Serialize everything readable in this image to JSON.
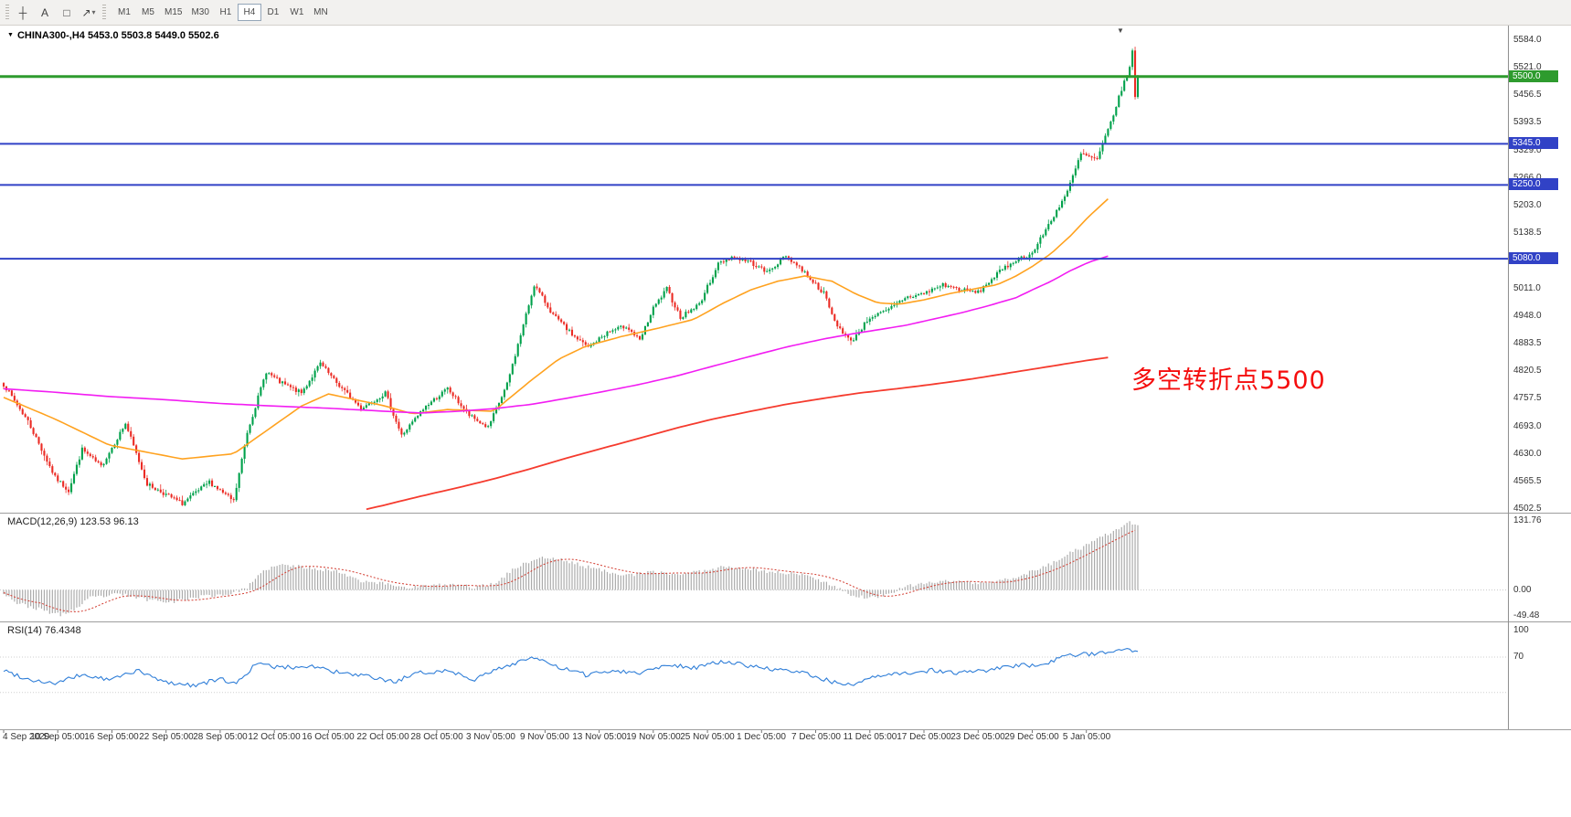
{
  "toolbar": {
    "tools": [
      {
        "name": "crosshair-tool",
        "glyph": "┼"
      },
      {
        "name": "text-tool",
        "glyph": "A"
      },
      {
        "name": "shapes-tool",
        "glyph": "□"
      },
      {
        "name": "arrows-tool",
        "glyph": "↗",
        "caret": true
      }
    ],
    "timeframes": [
      {
        "label": "M1",
        "active": false
      },
      {
        "label": "M5",
        "active": false
      },
      {
        "label": "M15",
        "active": false
      },
      {
        "label": "M30",
        "active": false
      },
      {
        "label": "H1",
        "active": false
      },
      {
        "label": "H4",
        "active": true
      },
      {
        "label": "D1",
        "active": false
      },
      {
        "label": "W1",
        "active": false
      },
      {
        "label": "MN",
        "active": false
      }
    ]
  },
  "chart": {
    "title": "CHINA300-,H4 5453.0 5503.8 5449.0 5502.6",
    "collapse_icon": "▼",
    "shift_icon": "▼"
  },
  "annotation": {
    "text": "多空转折点5500",
    "color": "#F50D0D"
  },
  "chart_data": {
    "type": "candlestick",
    "symbol": "CHINA300-",
    "timeframe": "H4",
    "ohlc_current": {
      "open": 5453.0,
      "high": 5503.8,
      "low": 5449.0,
      "close": 5502.6
    },
    "num_candles": 420,
    "colors": {
      "up": "#00A14B",
      "down": "#EB2B24",
      "background": "#FFFFFF"
    },
    "price_axis": {
      "min": 4502.5,
      "max": 5584.0,
      "ticks": [
        "5584.0",
        "5521.0",
        "5456.5",
        "5393.5",
        "5329.0",
        "5266.0",
        "5203.0",
        "5138.5",
        "5011.0",
        "4948.0",
        "4883.5",
        "4820.5",
        "4757.5",
        "4693.0",
        "4630.0",
        "4565.5",
        "4502.5"
      ]
    },
    "levels": [
      {
        "price": 5500.0,
        "label": "5500.0",
        "color": "#2E9B2E",
        "line_width": 3
      },
      {
        "price": 5345.0,
        "label": "5345.0",
        "color": "#3142C6",
        "line_width": 2
      },
      {
        "price": 5250.0,
        "label": "5250.0",
        "color": "#3142C6",
        "line_width": 2
      },
      {
        "price": 5080.0,
        "label": "5080.0",
        "color": "#3142C6",
        "line_width": 2
      }
    ],
    "close_path": [
      [
        0,
        4790
      ],
      [
        9,
        4705
      ],
      [
        19,
        4575
      ],
      [
        24,
        4545
      ],
      [
        29,
        4640
      ],
      [
        36,
        4600
      ],
      [
        45,
        4700
      ],
      [
        53,
        4560
      ],
      [
        66,
        4515
      ],
      [
        76,
        4565
      ],
      [
        85,
        4520
      ],
      [
        90,
        4680
      ],
      [
        97,
        4820
      ],
      [
        102,
        4795
      ],
      [
        110,
        4770
      ],
      [
        117,
        4838
      ],
      [
        122,
        4800
      ],
      [
        132,
        4735
      ],
      [
        141,
        4770
      ],
      [
        147,
        4672
      ],
      [
        156,
        4740
      ],
      [
        164,
        4780
      ],
      [
        172,
        4718
      ],
      [
        179,
        4690
      ],
      [
        186,
        4790
      ],
      [
        193,
        4950
      ],
      [
        196,
        5020
      ],
      [
        203,
        4950
      ],
      [
        210,
        4905
      ],
      [
        216,
        4875
      ],
      [
        223,
        4910
      ],
      [
        230,
        4925
      ],
      [
        235,
        4890
      ],
      [
        240,
        4965
      ],
      [
        245,
        5010
      ],
      [
        250,
        4945
      ],
      [
        257,
        4975
      ],
      [
        264,
        5068
      ],
      [
        269,
        5085
      ],
      [
        276,
        5072
      ],
      [
        282,
        5048
      ],
      [
        289,
        5088
      ],
      [
        296,
        5048
      ],
      [
        303,
        5000
      ],
      [
        307,
        4935
      ],
      [
        313,
        4888
      ],
      [
        320,
        4945
      ],
      [
        326,
        4958
      ],
      [
        333,
        4990
      ],
      [
        340,
        5000
      ],
      [
        347,
        5020
      ],
      [
        354,
        5008
      ],
      [
        360,
        5002
      ],
      [
        367,
        5045
      ],
      [
        374,
        5078
      ],
      [
        380,
        5092
      ],
      [
        386,
        5158
      ],
      [
        393,
        5235
      ],
      [
        398,
        5322
      ],
      [
        404,
        5308
      ],
      [
        409,
        5395
      ],
      [
        413,
        5470
      ],
      [
        416,
        5520
      ],
      [
        417,
        5560
      ],
      [
        418,
        5450
      ],
      [
        419,
        5502.6
      ]
    ],
    "moving_averages": [
      {
        "name": "ma-fast",
        "color": "#FFA21F",
        "width": 1.6,
        "points": [
          [
            0,
            4760
          ],
          [
            19,
            4710
          ],
          [
            39,
            4650
          ],
          [
            66,
            4618
          ],
          [
            85,
            4630
          ],
          [
            110,
            4740
          ],
          [
            120,
            4768
          ],
          [
            141,
            4740
          ],
          [
            151,
            4722
          ],
          [
            164,
            4732
          ],
          [
            181,
            4728
          ],
          [
            195,
            4800
          ],
          [
            205,
            4848
          ],
          [
            215,
            4878
          ],
          [
            228,
            4900
          ],
          [
            242,
            4920
          ],
          [
            255,
            4940
          ],
          [
            266,
            4978
          ],
          [
            276,
            5008
          ],
          [
            286,
            5028
          ],
          [
            296,
            5040
          ],
          [
            306,
            5028
          ],
          [
            315,
            4998
          ],
          [
            323,
            4978
          ],
          [
            331,
            4975
          ],
          [
            340,
            4985
          ],
          [
            350,
            5000
          ],
          [
            360,
            5012
          ],
          [
            367,
            5020
          ],
          [
            374,
            5040
          ],
          [
            380,
            5062
          ],
          [
            387,
            5092
          ],
          [
            394,
            5132
          ],
          [
            401,
            5178
          ],
          [
            408,
            5218
          ]
        ]
      },
      {
        "name": "ma-mid",
        "color": "#F21DF2",
        "width": 1.6,
        "points": [
          [
            0,
            4780
          ],
          [
            19,
            4772
          ],
          [
            39,
            4762
          ],
          [
            59,
            4755
          ],
          [
            80,
            4746
          ],
          [
            100,
            4740
          ],
          [
            120,
            4735
          ],
          [
            141,
            4728
          ],
          [
            154,
            4724
          ],
          [
            168,
            4728
          ],
          [
            181,
            4734
          ],
          [
            195,
            4744
          ],
          [
            208,
            4758
          ],
          [
            222,
            4774
          ],
          [
            235,
            4790
          ],
          [
            249,
            4810
          ],
          [
            262,
            4832
          ],
          [
            276,
            4855
          ],
          [
            289,
            4876
          ],
          [
            303,
            4895
          ],
          [
            313,
            4906
          ],
          [
            323,
            4916
          ],
          [
            333,
            4926
          ],
          [
            343,
            4940
          ],
          [
            353,
            4954
          ],
          [
            363,
            4970
          ],
          [
            374,
            4990
          ],
          [
            380,
            5008
          ],
          [
            387,
            5028
          ],
          [
            394,
            5052
          ],
          [
            401,
            5072
          ],
          [
            408,
            5086
          ]
        ]
      },
      {
        "name": "ma-slow",
        "color": "#F53B2E",
        "width": 1.8,
        "points": [
          [
            134,
            4502
          ],
          [
            141,
            4512
          ],
          [
            154,
            4532
          ],
          [
            168,
            4552
          ],
          [
            181,
            4572
          ],
          [
            195,
            4596
          ],
          [
            208,
            4620
          ],
          [
            222,
            4644
          ],
          [
            235,
            4666
          ],
          [
            249,
            4690
          ],
          [
            262,
            4710
          ],
          [
            276,
            4728
          ],
          [
            289,
            4744
          ],
          [
            303,
            4758
          ],
          [
            316,
            4770
          ],
          [
            330,
            4780
          ],
          [
            343,
            4790
          ],
          [
            357,
            4802
          ],
          [
            370,
            4815
          ],
          [
            387,
            4832
          ],
          [
            401,
            4846
          ],
          [
            408,
            4852
          ]
        ]
      }
    ],
    "time_axis": [
      "4 Sep 2020",
      "10 Sep 05:00",
      "16 Sep 05:00",
      "22 Sep 05:00",
      "28 Sep 05:00",
      "12 Oct 05:00",
      "16 Oct 05:00",
      "22 Oct 05:00",
      "28 Oct 05:00",
      "3 Nov 05:00",
      "9 Nov 05:00",
      "13 Nov 05:00",
      "19 Nov 05:00",
      "25 Nov 05:00",
      "1 Dec 05:00",
      "7 Dec 05:00",
      "11 Dec 05:00",
      "17 Dec 05:00",
      "23 Dec 05:00",
      "29 Dec 05:00",
      "5 Jan 05:00"
    ],
    "macd": {
      "label": "MACD(12,26,9) 123.53 96.13",
      "main_value": 123.53,
      "signal_value": 96.13,
      "max": 131.76,
      "min": -49.48,
      "ticks": [
        "131.76",
        "0.00",
        "-49.48"
      ],
      "colors": {
        "histogram": "#ABABAB",
        "signal": "#D23A2E"
      },
      "points": [
        [
          0,
          -5
        ],
        [
          5,
          -25
        ],
        [
          14,
          -38
        ],
        [
          21,
          -48
        ],
        [
          27,
          -35
        ],
        [
          32,
          -15
        ],
        [
          43,
          -8
        ],
        [
          53,
          -18
        ],
        [
          63,
          -22
        ],
        [
          73,
          -12
        ],
        [
          83,
          -8
        ],
        [
          90,
          5
        ],
        [
          97,
          40
        ],
        [
          103,
          48
        ],
        [
          114,
          42
        ],
        [
          124,
          35
        ],
        [
          132,
          18
        ],
        [
          141,
          12
        ],
        [
          149,
          5
        ],
        [
          157,
          8
        ],
        [
          168,
          10
        ],
        [
          174,
          5
        ],
        [
          181,
          12
        ],
        [
          190,
          45
        ],
        [
          198,
          62
        ],
        [
          206,
          58
        ],
        [
          215,
          45
        ],
        [
          223,
          35
        ],
        [
          232,
          28
        ],
        [
          240,
          35
        ],
        [
          249,
          30
        ],
        [
          257,
          35
        ],
        [
          266,
          45
        ],
        [
          274,
          42
        ],
        [
          282,
          35
        ],
        [
          291,
          32
        ],
        [
          299,
          25
        ],
        [
          308,
          5
        ],
        [
          314,
          -12
        ],
        [
          321,
          -15
        ],
        [
          328,
          -5
        ],
        [
          335,
          8
        ],
        [
          343,
          15
        ],
        [
          352,
          18
        ],
        [
          360,
          12
        ],
        [
          369,
          18
        ],
        [
          377,
          30
        ],
        [
          385,
          45
        ],
        [
          394,
          70
        ],
        [
          402,
          90
        ],
        [
          409,
          110
        ],
        [
          416,
          128
        ],
        [
          419,
          123.53
        ]
      ]
    },
    "rsi": {
      "label": "RSI(14) 76.4348",
      "value": 76.4348,
      "color": "#2F7ED8",
      "ticks": [
        "100",
        "70"
      ],
      "levels": [
        70,
        30
      ],
      "points": [
        [
          0,
          55
        ],
        [
          9,
          45
        ],
        [
          19,
          40
        ],
        [
          29,
          50
        ],
        [
          39,
          44
        ],
        [
          49,
          55
        ],
        [
          59,
          42
        ],
        [
          70,
          38
        ],
        [
          80,
          45
        ],
        [
          86,
          40
        ],
        [
          93,
          62
        ],
        [
          103,
          58
        ],
        [
          114,
          60
        ],
        [
          124,
          52
        ],
        [
          134,
          48
        ],
        [
          144,
          42
        ],
        [
          154,
          52
        ],
        [
          164,
          55
        ],
        [
          174,
          45
        ],
        [
          184,
          58
        ],
        [
          195,
          70
        ],
        [
          205,
          58
        ],
        [
          215,
          50
        ],
        [
          225,
          55
        ],
        [
          235,
          52
        ],
        [
          245,
          62
        ],
        [
          255,
          58
        ],
        [
          266,
          65
        ],
        [
          276,
          60
        ],
        [
          286,
          55
        ],
        [
          296,
          52
        ],
        [
          306,
          42
        ],
        [
          313,
          38
        ],
        [
          323,
          48
        ],
        [
          333,
          52
        ],
        [
          343,
          55
        ],
        [
          353,
          52
        ],
        [
          363,
          55
        ],
        [
          374,
          60
        ],
        [
          384,
          62
        ],
        [
          394,
          72
        ],
        [
          404,
          74
        ],
        [
          410,
          78
        ],
        [
          415,
          80
        ],
        [
          419,
          76.4348
        ]
      ]
    }
  }
}
